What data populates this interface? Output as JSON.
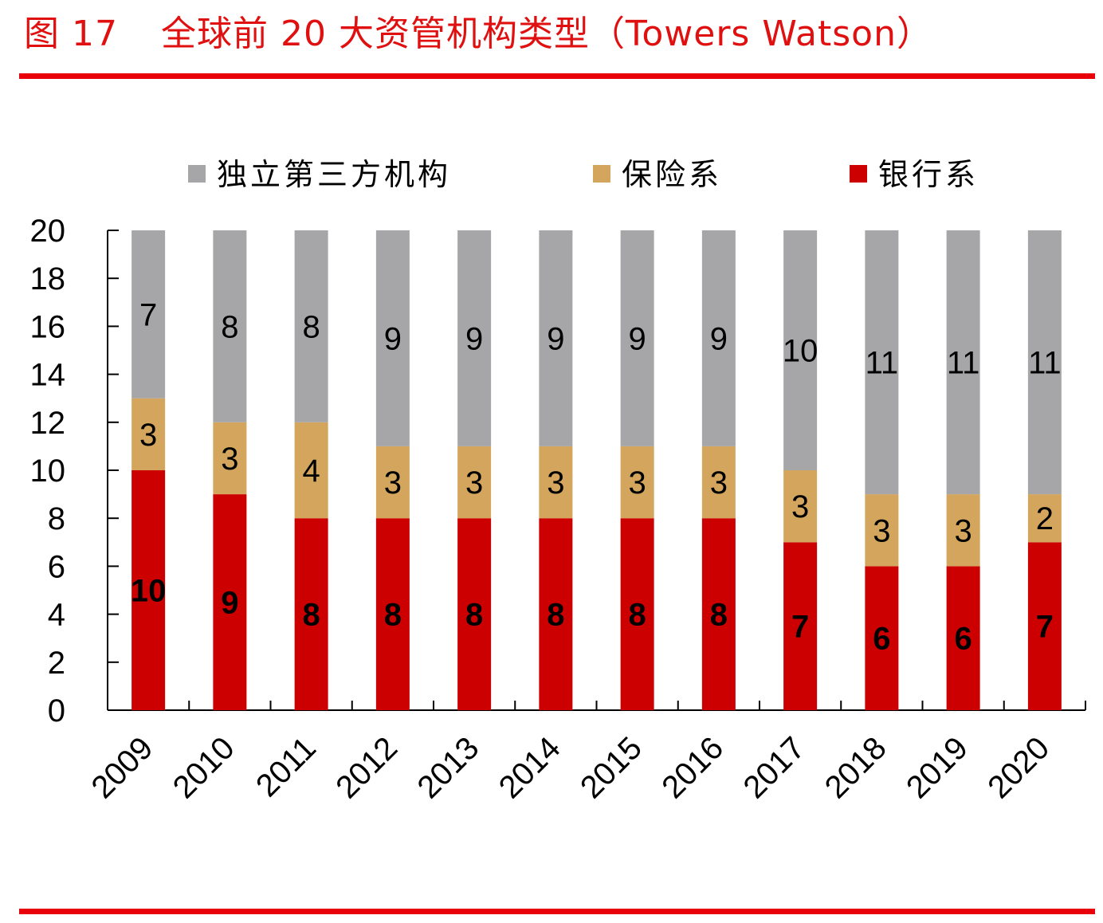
{
  "header": {
    "figure_number": "图 17",
    "title": "全球前 20 大资管机构类型（Towers Watson）"
  },
  "chart_data": {
    "type": "bar",
    "stacked": true,
    "categories": [
      "2009",
      "2010",
      "2011",
      "2012",
      "2013",
      "2014",
      "2015",
      "2016",
      "2017",
      "2018",
      "2019",
      "2020"
    ],
    "series": [
      {
        "name": "银行系",
        "color": "#cc0000",
        "values": [
          10,
          9,
          8,
          8,
          8,
          8,
          8,
          8,
          7,
          6,
          6,
          7
        ]
      },
      {
        "name": "保险系",
        "color": "#d4a55c",
        "values": [
          3,
          3,
          4,
          3,
          3,
          3,
          3,
          3,
          3,
          3,
          3,
          2
        ]
      },
      {
        "name": "独立第三方机构",
        "color": "#a6a6a9",
        "values": [
          7,
          8,
          8,
          9,
          9,
          9,
          9,
          9,
          10,
          11,
          11,
          11
        ]
      }
    ],
    "legend_order": [
      "独立第三方机构",
      "保险系",
      "银行系"
    ],
    "legend_position": "top",
    "ylim": [
      0,
      20
    ],
    "yticks": [
      "0",
      "2",
      "4",
      "6",
      "8",
      "10",
      "12",
      "14",
      "16",
      "18",
      "20"
    ],
    "grid": false,
    "data_labels": true
  }
}
